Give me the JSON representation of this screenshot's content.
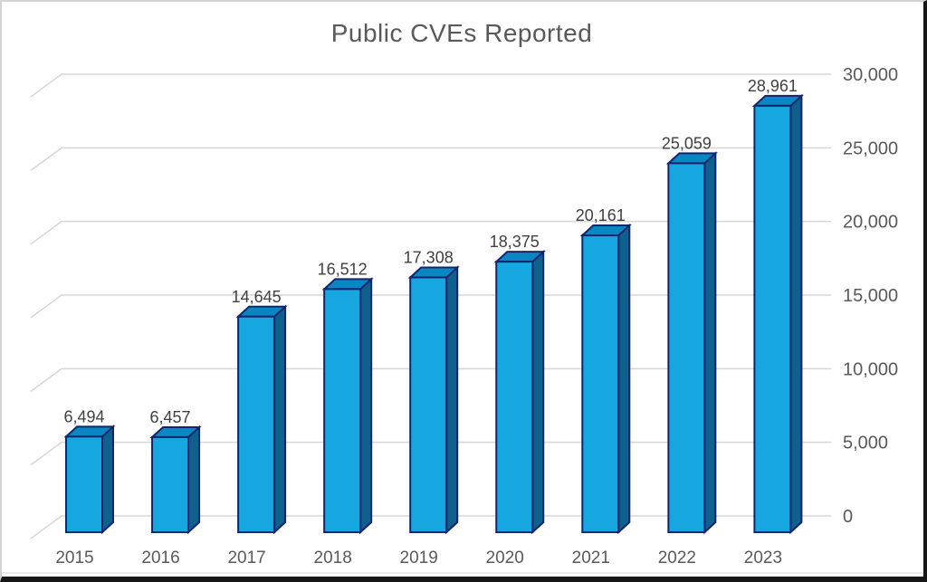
{
  "frame": {
    "background": "#FFFFFF",
    "border_light": "#D4D4D4",
    "border_dark": "#161616"
  },
  "chart_data": {
    "type": "bar",
    "style": "3d-column",
    "title": "Public CVEs Reported",
    "categories": [
      "2015",
      "2016",
      "2017",
      "2018",
      "2019",
      "2020",
      "2021",
      "2022",
      "2023"
    ],
    "values": [
      6494,
      6457,
      14645,
      16512,
      17308,
      18375,
      20161,
      25059,
      28961
    ],
    "value_labels": [
      "6,494",
      "6,457",
      "14,645",
      "16,512",
      "17,308",
      "18,375",
      "20,161",
      "25,059",
      "28,961"
    ],
    "xlabel": "",
    "ylabel": "",
    "y_axis": {
      "side": "right",
      "min": 0,
      "max": 30000,
      "step": 5000,
      "tick_labels": [
        "0",
        "5,000",
        "10,000",
        "15,000",
        "20,000",
        "25,000",
        "30,000"
      ]
    },
    "grid": true,
    "legend": false,
    "colors": {
      "bar_front": "#16A7E0",
      "bar_top": "#0A86C2",
      "bar_side": "#0F618D",
      "bar_outline": "#15256B",
      "gridline": "#D6D6D6",
      "bottom_hairline": "#DEDEDE",
      "title_text": "#595959",
      "axis_text": "#595959",
      "data_label_text": "#404040"
    }
  }
}
